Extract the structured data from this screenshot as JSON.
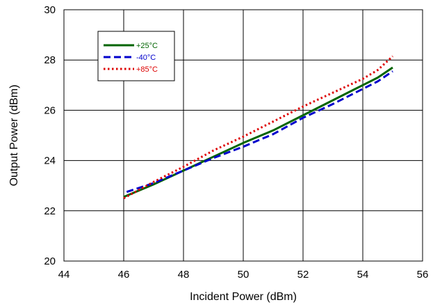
{
  "chart_data": {
    "type": "line",
    "xlabel": "Incident Power (dBm)",
    "ylabel": "Output Power (dBm)",
    "xlim": [
      44,
      56
    ],
    "ylim": [
      20,
      30
    ],
    "xticks": [
      "44",
      "46",
      "48",
      "50",
      "52",
      "54",
      "56"
    ],
    "yticks": [
      "20",
      "22",
      "24",
      "26",
      "28",
      "30"
    ],
    "grid": true,
    "legend_position": "top-left",
    "series": [
      {
        "name": "+25°C",
        "color": "#006400",
        "style": "solid",
        "x": [
          46,
          47,
          48,
          49,
          50,
          51,
          52,
          53,
          54,
          54.5,
          55
        ],
        "y": [
          22.55,
          23.05,
          23.6,
          24.15,
          24.7,
          25.2,
          25.8,
          26.4,
          27.0,
          27.3,
          27.7
        ]
      },
      {
        "name": "-40°C",
        "color": "#0000CC",
        "style": "dashed",
        "x": [
          46.1,
          47,
          48,
          49,
          50,
          51,
          52,
          53,
          54,
          54.5,
          55
        ],
        "y": [
          22.75,
          23.1,
          23.6,
          24.1,
          24.55,
          25.05,
          25.7,
          26.25,
          26.85,
          27.15,
          27.55
        ]
      },
      {
        "name": "+85°C",
        "color": "#DD0000",
        "style": "dotted",
        "x": [
          46,
          47,
          48,
          49,
          50,
          51,
          52,
          53,
          54,
          54.5,
          55
        ],
        "y": [
          22.5,
          23.15,
          23.75,
          24.4,
          24.95,
          25.55,
          26.15,
          26.7,
          27.25,
          27.6,
          28.15
        ]
      }
    ]
  }
}
